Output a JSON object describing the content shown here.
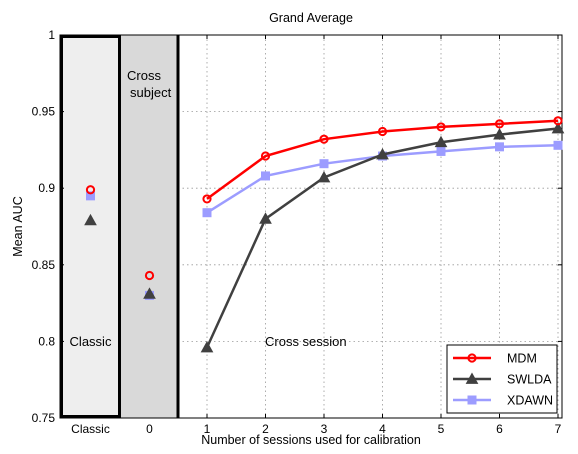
{
  "chart_data": {
    "type": "line",
    "title": "Grand Average",
    "xlabel": "Number of sessions used for calibration",
    "ylabel": "Mean AUC",
    "ylim": [
      0.75,
      1.0
    ],
    "y_ticks": [
      "0.75",
      "0.8",
      "0.85",
      "0.9",
      "0.95",
      "1"
    ],
    "x_categories": [
      "Classic",
      "0",
      "1",
      "2",
      "3",
      "4",
      "5",
      "6",
      "7"
    ],
    "grid": true,
    "legend_position": "bottom-right",
    "regions": [
      {
        "label": "Classic",
        "category": "Classic"
      },
      {
        "label": "Cross subject",
        "category": "0"
      },
      {
        "label": "Cross session",
        "category": "1-7"
      }
    ],
    "series": [
      {
        "name": "MDM",
        "color": "#ff0000",
        "marker": "circle",
        "classic": 0.899,
        "cross_subject": 0.843,
        "x": [
          1,
          2,
          3,
          4,
          5,
          6,
          7
        ],
        "values": [
          0.893,
          0.921,
          0.932,
          0.937,
          0.94,
          0.942,
          0.944
        ]
      },
      {
        "name": "SWLDA",
        "color": "#404040",
        "marker": "triangle",
        "classic": 0.879,
        "cross_subject": 0.831,
        "x": [
          1,
          2,
          3,
          4,
          5,
          6,
          7
        ],
        "values": [
          0.796,
          0.88,
          0.907,
          0.922,
          0.93,
          0.935,
          0.939
        ]
      },
      {
        "name": "XDAWN",
        "color": "#9c9cff",
        "marker": "square",
        "classic": 0.895,
        "cross_subject": 0.83,
        "x": [
          1,
          2,
          3,
          4,
          5,
          6,
          7
        ],
        "values": [
          0.884,
          0.908,
          0.916,
          0.921,
          0.924,
          0.927,
          0.928
        ]
      }
    ]
  }
}
